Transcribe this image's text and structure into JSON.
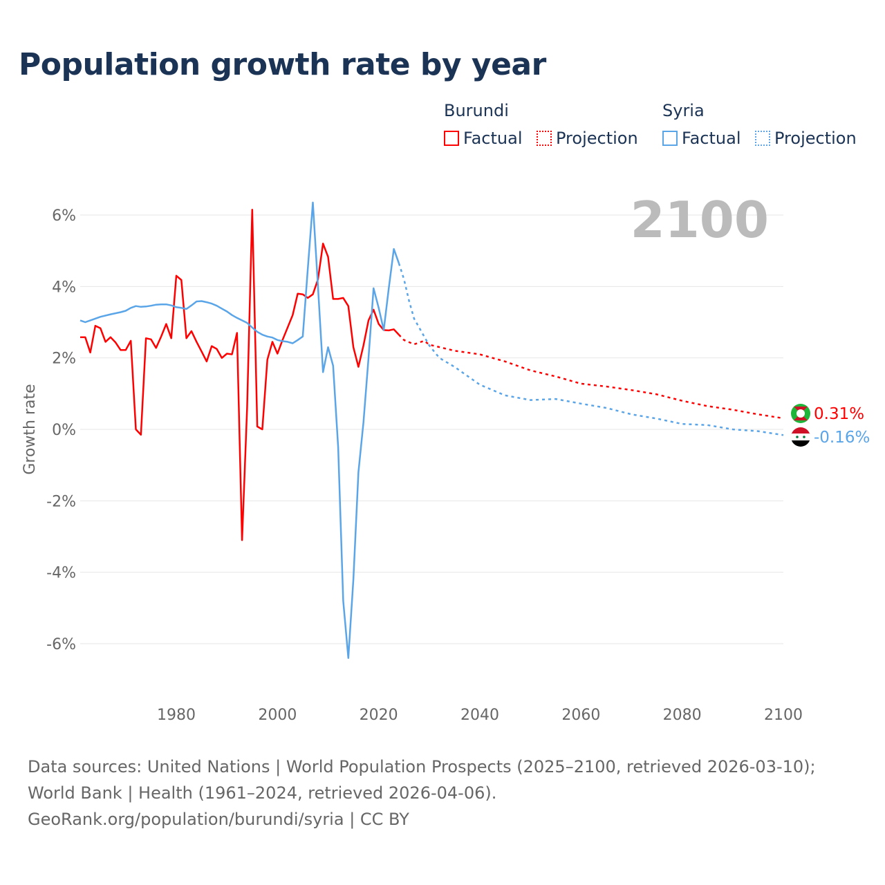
{
  "title": "Population growth rate by year",
  "legend": {
    "groups": [
      {
        "name": "Burundi",
        "color": "#ff0000",
        "items": [
          "Factual",
          "Projection"
        ]
      },
      {
        "name": "Syria",
        "color": "#5aa5e8",
        "items": [
          "Factual",
          "Projection"
        ]
      }
    ]
  },
  "current_year": "2100",
  "footer": {
    "sources": "Data sources: United Nations | World Population Prospects (2025–2100, retrieved 2026-03-10); World Bank | Health (1961–2024, retrieved 2026-04-06).",
    "link": "GeoRank.org/population/burundi/syria | CC BY"
  },
  "chart_data": {
    "type": "line",
    "title": "Population growth rate by year",
    "xlabel": "",
    "ylabel": "Growth rate",
    "xlim": [
      1961,
      2100
    ],
    "ylim": [
      -7,
      6.5
    ],
    "xticks": [
      1980,
      2000,
      2020,
      2040,
      2060,
      2080,
      2100
    ],
    "yticks": [
      -6,
      -4,
      -2,
      0,
      2,
      4,
      6
    ],
    "ytick_labels": [
      "-6%",
      "-4%",
      "-2%",
      "0%",
      "2%",
      "4%",
      "6%"
    ],
    "grid": true,
    "series": [
      {
        "name": "Burundi",
        "kind": "Factual",
        "color": "#ff0000",
        "dashed": false,
        "x": [
          1961,
          1962,
          1963,
          1964,
          1965,
          1966,
          1967,
          1968,
          1969,
          1970,
          1971,
          1972,
          1973,
          1974,
          1975,
          1976,
          1977,
          1978,
          1979,
          1980,
          1981,
          1982,
          1983,
          1984,
          1985,
          1986,
          1987,
          1988,
          1989,
          1990,
          1991,
          1992,
          1993,
          1994,
          1995,
          1996,
          1997,
          1998,
          1999,
          2000,
          2001,
          2002,
          2003,
          2004,
          2005,
          2006,
          2007,
          2008,
          2009,
          2010,
          2011,
          2012,
          2013,
          2014,
          2015,
          2016,
          2017,
          2018,
          2019,
          2020,
          2021,
          2022,
          2023,
          2024
        ],
        "y": [
          2.58,
          2.58,
          2.15,
          2.9,
          2.83,
          2.45,
          2.58,
          2.43,
          2.22,
          2.22,
          2.48,
          0.0,
          -0.15,
          2.55,
          2.52,
          2.28,
          2.6,
          2.95,
          2.55,
          4.3,
          4.18,
          2.55,
          2.75,
          2.45,
          2.18,
          1.9,
          2.33,
          2.25,
          2.0,
          2.12,
          2.1,
          2.7,
          -3.1,
          0.6,
          6.15,
          0.08,
          0.0,
          1.95,
          2.45,
          2.12,
          2.5,
          2.85,
          3.2,
          3.8,
          3.78,
          3.68,
          3.78,
          4.2,
          5.2,
          4.83,
          3.65,
          3.65,
          3.68,
          3.45,
          2.3,
          1.75,
          2.35,
          3.05,
          3.35,
          2.95,
          2.78,
          2.77,
          2.8,
          2.65
        ]
      },
      {
        "name": "Burundi",
        "kind": "Projection",
        "color": "#ff0000",
        "dashed": true,
        "x": [
          2024,
          2025,
          2027,
          2029,
          2030,
          2035,
          2040,
          2045,
          2050,
          2055,
          2060,
          2065,
          2070,
          2075,
          2080,
          2085,
          2090,
          2095,
          2100
        ],
        "y": [
          2.65,
          2.5,
          2.38,
          2.48,
          2.37,
          2.2,
          2.1,
          1.9,
          1.65,
          1.48,
          1.28,
          1.2,
          1.1,
          0.98,
          0.8,
          0.65,
          0.55,
          0.42,
          0.31
        ]
      },
      {
        "name": "Syria",
        "kind": "Factual",
        "color": "#5aa5e8",
        "dashed": false,
        "x": [
          1961,
          1962,
          1963,
          1965,
          1967,
          1969,
          1970,
          1971,
          1972,
          1973,
          1974,
          1975,
          1976,
          1977,
          1978,
          1979,
          1980,
          1981,
          1982,
          1983,
          1984,
          1985,
          1986,
          1987,
          1988,
          1989,
          1990,
          1991,
          1992,
          1993,
          1994,
          1995,
          1996,
          1997,
          1998,
          1999,
          2000,
          2001,
          2002,
          2003,
          2004,
          2005,
          2006,
          2007,
          2008,
          2009,
          2010,
          2011,
          2012,
          2013,
          2014,
          2015,
          2016,
          2017,
          2018,
          2019,
          2020,
          2021,
          2022,
          2023,
          2024
        ],
        "y": [
          3.05,
          3.0,
          3.05,
          3.15,
          3.22,
          3.28,
          3.32,
          3.4,
          3.45,
          3.43,
          3.44,
          3.46,
          3.49,
          3.5,
          3.5,
          3.47,
          3.42,
          3.4,
          3.37,
          3.47,
          3.58,
          3.59,
          3.56,
          3.52,
          3.46,
          3.38,
          3.3,
          3.2,
          3.12,
          3.05,
          2.98,
          2.85,
          2.73,
          2.65,
          2.6,
          2.57,
          2.5,
          2.47,
          2.45,
          2.41,
          2.5,
          2.6,
          4.5,
          6.35,
          4.0,
          1.6,
          2.3,
          1.78,
          -0.5,
          -4.8,
          -6.4,
          -4.2,
          -1.2,
          0.2,
          2.0,
          3.95,
          3.4,
          2.78,
          3.95,
          5.05,
          4.65
        ]
      },
      {
        "name": "Syria",
        "kind": "Projection",
        "color": "#5aa5e8",
        "dashed": true,
        "x": [
          2024,
          2025,
          2026,
          2027,
          2028,
          2030,
          2032,
          2035,
          2040,
          2045,
          2050,
          2055,
          2060,
          2065,
          2070,
          2075,
          2080,
          2085,
          2090,
          2095,
          2100
        ],
        "y": [
          4.65,
          4.2,
          3.6,
          3.1,
          2.85,
          2.35,
          2.0,
          1.75,
          1.25,
          0.95,
          0.82,
          0.85,
          0.72,
          0.6,
          0.42,
          0.3,
          0.15,
          0.12,
          0.0,
          -0.05,
          -0.16
        ]
      }
    ],
    "end_labels": [
      {
        "country": "Burundi",
        "value": "0.31%",
        "color": "#ff0000"
      },
      {
        "country": "Syria",
        "value": "-0.16%",
        "color": "#5aa5e8"
      }
    ]
  }
}
